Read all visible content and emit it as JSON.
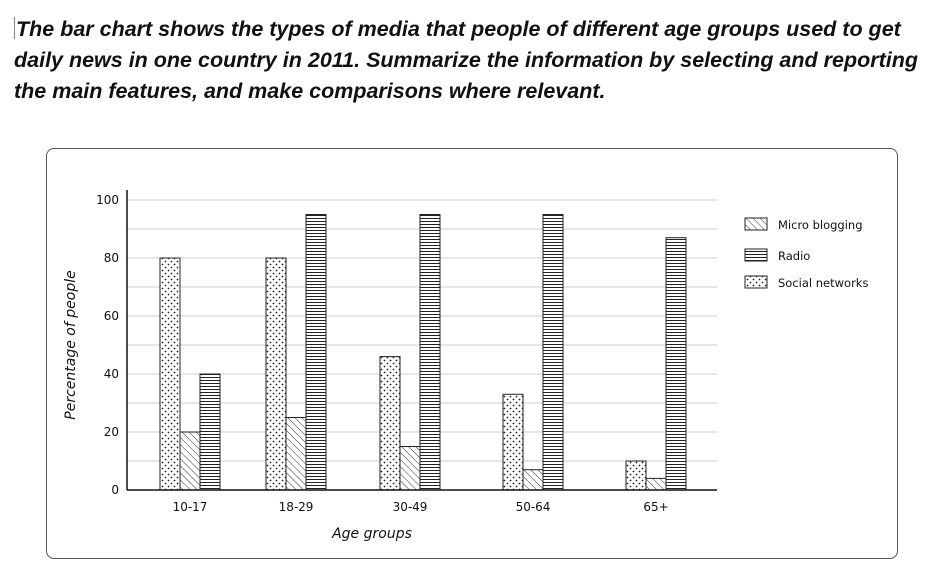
{
  "prompt": {
    "text": "The bar chart shows the types of media that people of different age groups used to get daily news in one country in 2011. Summarize the information by selecting and reporting the main features, and make comparisons where relevant."
  },
  "chart_data": {
    "type": "bar",
    "title": "",
    "xlabel": "Age groups",
    "ylabel": "Percentage of people",
    "categories": [
      "10-17",
      "18-29",
      "30-49",
      "50-64",
      "65+"
    ],
    "series": [
      {
        "name": "Social networks",
        "pattern": "dots",
        "values": [
          80,
          80,
          46,
          33,
          10
        ]
      },
      {
        "name": "Micro blogging",
        "pattern": "diagonal",
        "values": [
          20,
          25,
          15,
          7,
          4
        ]
      },
      {
        "name": "Radio",
        "pattern": "horizontal",
        "values": [
          40,
          95,
          95,
          95,
          87
        ]
      }
    ],
    "legend_order": [
      "Micro blogging",
      "Radio",
      "Social networks"
    ],
    "yticks": [
      0,
      20,
      40,
      60,
      80,
      100
    ],
    "ylim": [
      0,
      100
    ],
    "grid": true,
    "legend_position": "right"
  }
}
